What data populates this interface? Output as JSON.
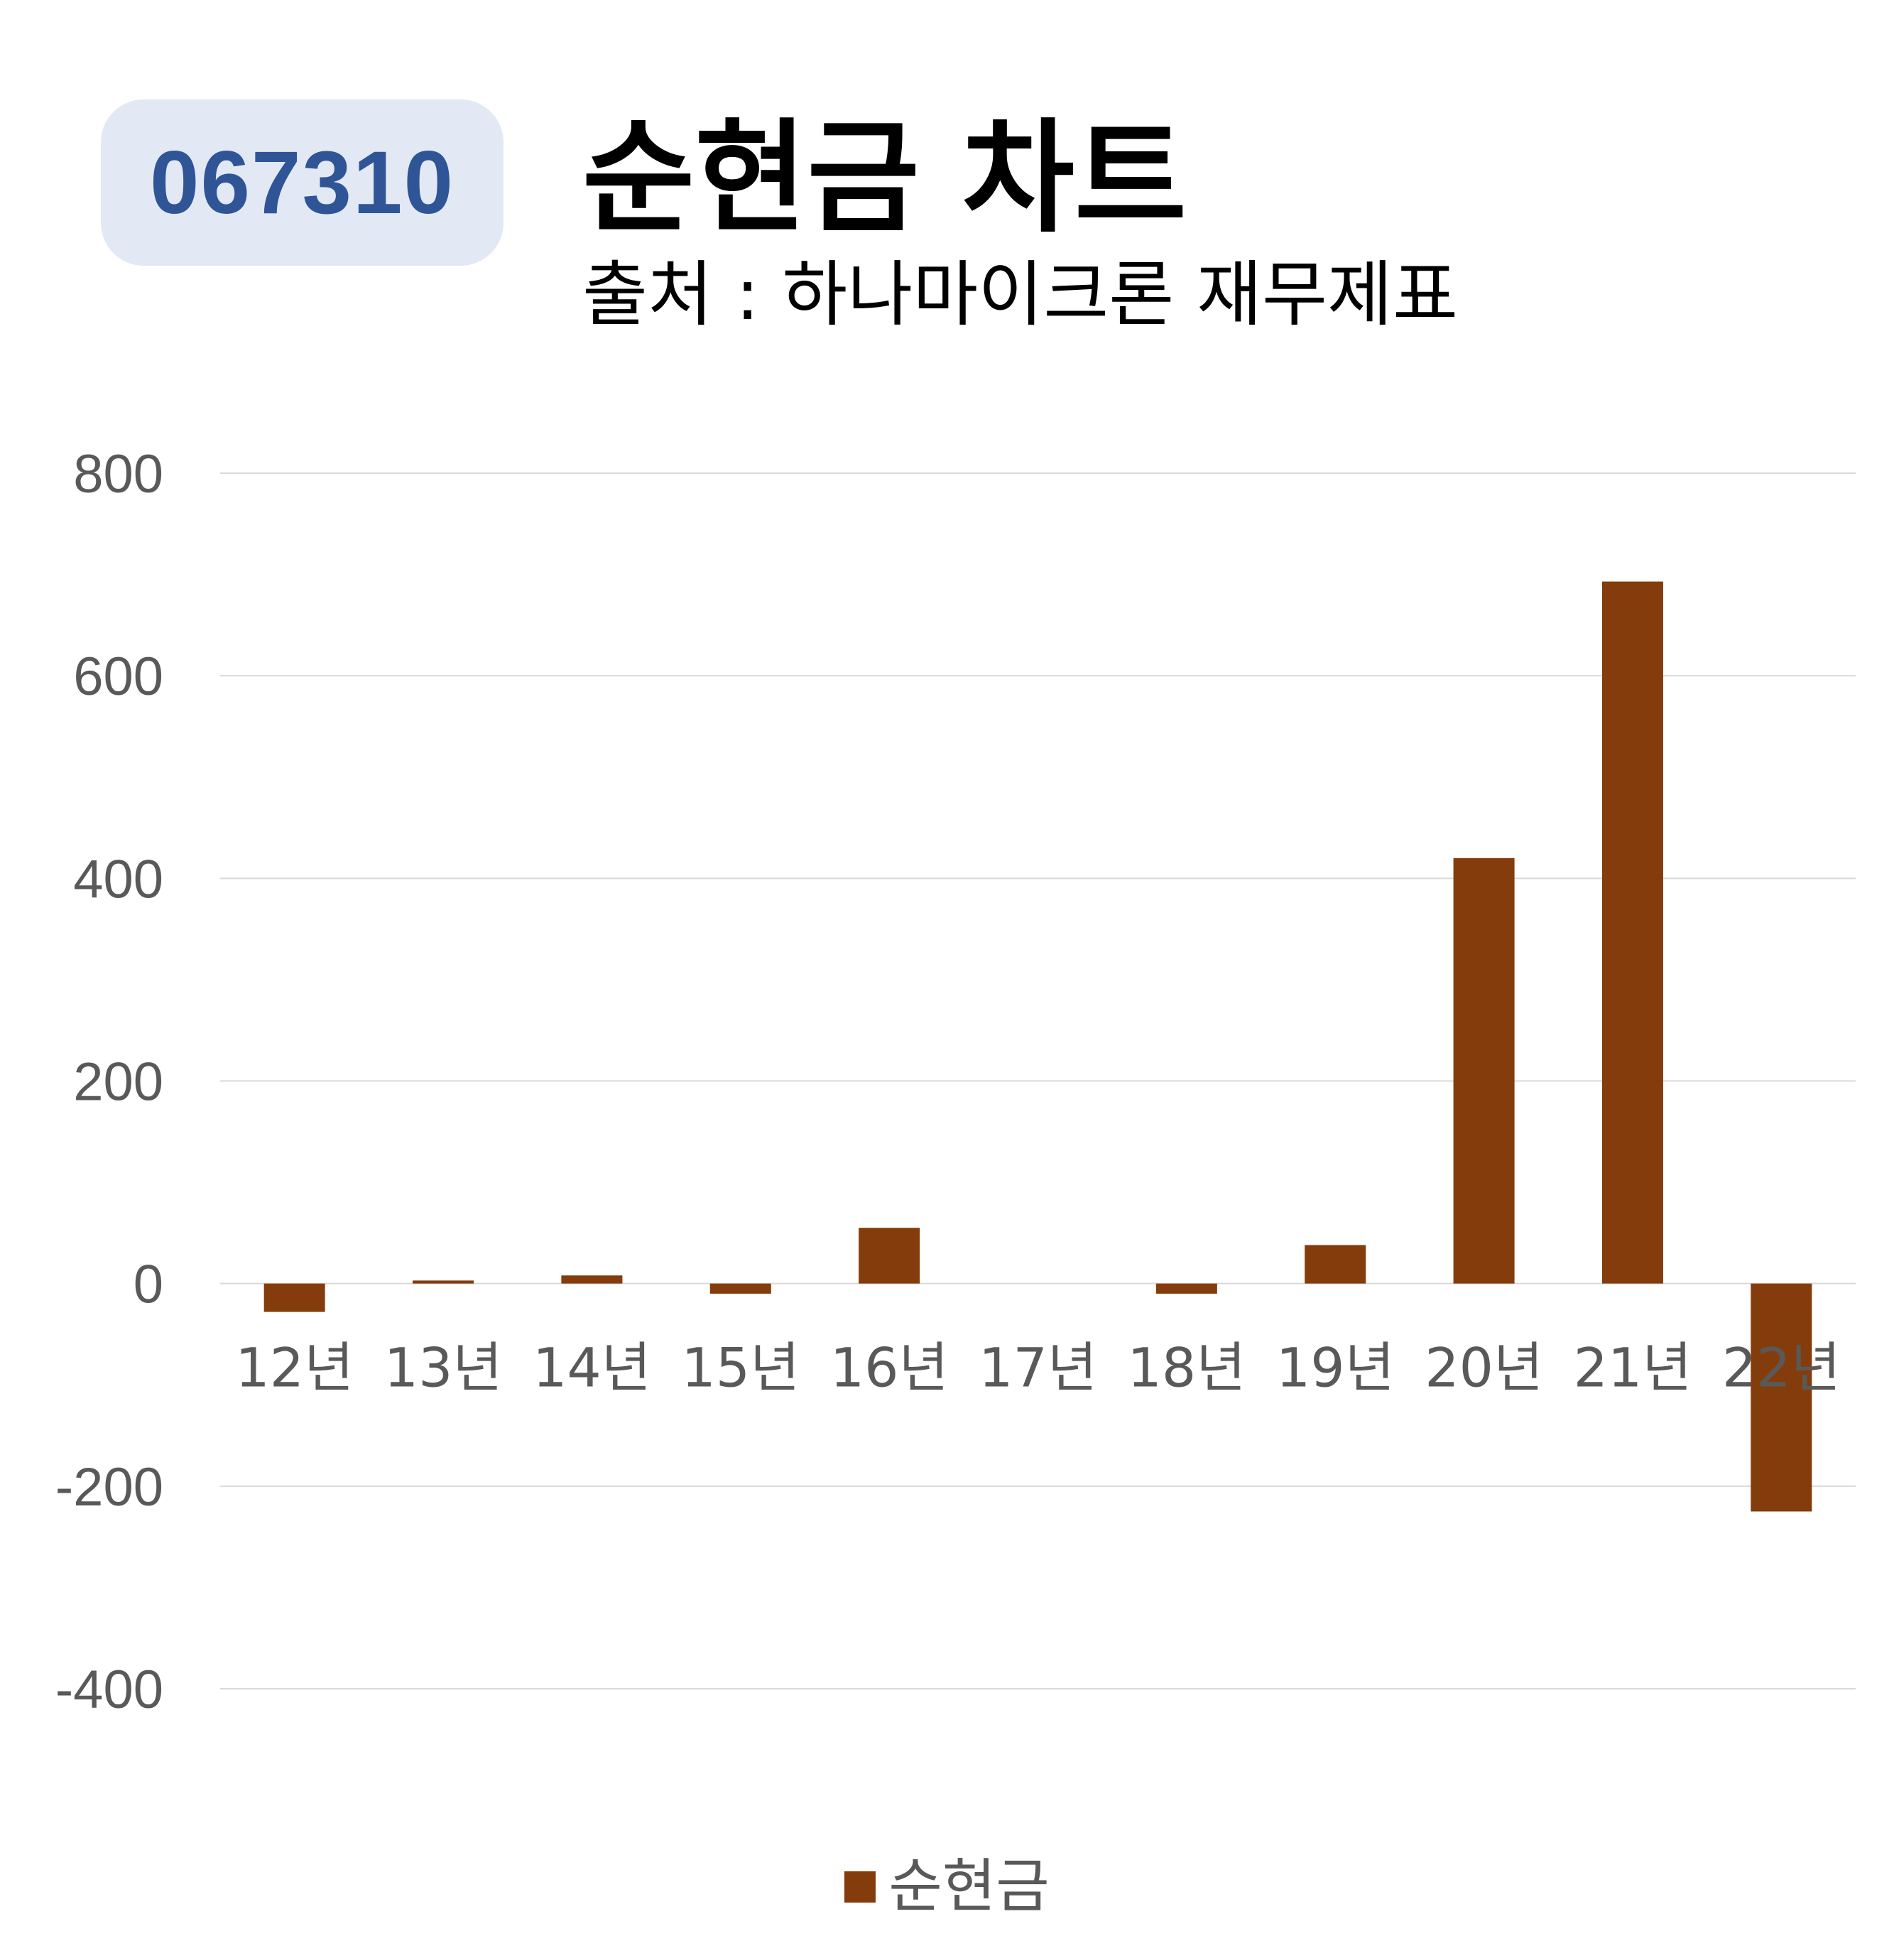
{
  "badge": {
    "code": "067310"
  },
  "header": {
    "title": "순현금 차트",
    "subtitle": "출처 : 하나마이크론 재무제표"
  },
  "colors": {
    "bar": "#843c0c",
    "grid": "#d9d9d9",
    "tick": "#595959",
    "badge_text": "#2f5597",
    "badge_bg": "#e3e9f4"
  },
  "legend": {
    "label": "순현금"
  },
  "chart_data": {
    "type": "bar",
    "categories": [
      "12년",
      "13년",
      "14년",
      "15년",
      "16년",
      "17년",
      "18년",
      "19년",
      "20년",
      "21년",
      "22년"
    ],
    "series": [
      {
        "name": "순현금",
        "values": [
          -28,
          3,
          8,
          -10,
          55,
          0,
          -10,
          38,
          420,
          693,
          -225
        ]
      }
    ],
    "ylim": [
      -400,
      800
    ],
    "yticks": [
      800,
      600,
      400,
      200,
      0,
      -200,
      -400
    ],
    "grid": true,
    "legend_position": "bottom"
  }
}
